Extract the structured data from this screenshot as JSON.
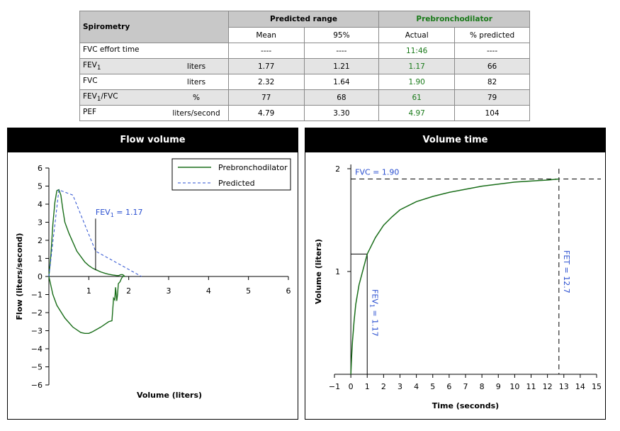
{
  "table": {
    "title": "Spirometry",
    "group_predicted": "Predicted range",
    "group_pre": "Prebronchodilator",
    "col_mean": "Mean",
    "col_95": "95%",
    "col_actual": "Actual",
    "col_pct": "% predicted",
    "rows": [
      {
        "name": "FVC effort time",
        "name_sub": "",
        "name_after": "",
        "unit": "",
        "mean": "----",
        "p95": "----",
        "actual": "11:46",
        "pct": "----"
      },
      {
        "name": "FEV",
        "name_sub": "1",
        "name_after": "",
        "unit": "liters",
        "mean": "1.77",
        "p95": "1.21",
        "actual": "1.17",
        "pct": "66"
      },
      {
        "name": "FVC",
        "name_sub": "",
        "name_after": "",
        "unit": "liters",
        "mean": "2.32",
        "p95": "1.64",
        "actual": "1.90",
        "pct": "82"
      },
      {
        "name": "FEV",
        "name_sub": "1",
        "name_after": "/FVC",
        "unit": "%",
        "mean": "77",
        "p95": "68",
        "actual": "61",
        "pct": "79"
      },
      {
        "name": "PEF",
        "name_sub": "",
        "name_after": "",
        "unit": "liters/second",
        "mean": "4.79",
        "p95": "3.30",
        "actual": "4.97",
        "pct": "104"
      }
    ]
  },
  "colors": {
    "pre": "#1a6e1a",
    "pred": "#2a4fd0",
    "label_blue": "#2a4fd0",
    "green_text": "#1a7a1a"
  },
  "chart_data": [
    {
      "type": "line",
      "title": "Flow volume",
      "xlabel": "Volume (liters)",
      "ylabel": "Flow (liters/second)",
      "xlim": [
        0,
        6
      ],
      "ylim": [
        -6,
        6
      ],
      "xticks": [
        "1",
        "2",
        "3",
        "4",
        "5",
        "6"
      ],
      "yticks": [
        "6",
        "5",
        "4",
        "3",
        "2",
        "1",
        "0",
        "−1",
        "−2",
        "−3",
        "−4",
        "−5",
        "−6"
      ],
      "legend": {
        "position": "top-right",
        "entries": [
          "Prebronchodilator",
          "Predicted"
        ]
      },
      "annotation": {
        "text_main": "FEV",
        "text_sub": "1",
        "text_after": " = 1.17",
        "x": 1.17
      },
      "series": [
        {
          "name": "Prebronchodilator",
          "style": "solid",
          "x": [
            0,
            0.05,
            0.1,
            0.15,
            0.2,
            0.25,
            0.3,
            0.35,
            0.4,
            0.5,
            0.6,
            0.7,
            0.8,
            0.9,
            1.0,
            1.1,
            1.2,
            1.3,
            1.4,
            1.5,
            1.6,
            1.7,
            1.75,
            1.8,
            1.85,
            1.88,
            1.9
          ],
          "y": [
            0,
            1.2,
            2.9,
            4.1,
            4.75,
            4.8,
            4.5,
            3.7,
            3.0,
            2.4,
            1.9,
            1.4,
            1.1,
            0.8,
            0.6,
            0.45,
            0.35,
            0.25,
            0.18,
            0.12,
            0.08,
            0.05,
            0.05,
            0.1,
            0.1,
            0.05,
            0
          ]
        },
        {
          "name": "Prebronchodilator (inspiratory)",
          "style": "solid",
          "x": [
            0,
            0.05,
            0.1,
            0.2,
            0.4,
            0.6,
            0.8,
            0.9,
            1.0,
            1.1,
            1.3,
            1.5,
            1.58,
            1.62,
            1.65,
            1.67,
            1.7,
            1.72,
            1.74,
            1.78,
            1.82,
            1.86,
            1.9
          ],
          "y": [
            0,
            -0.5,
            -1.0,
            -1.6,
            -2.3,
            -2.8,
            -3.1,
            -3.15,
            -3.15,
            -3.05,
            -2.8,
            -2.5,
            -2.45,
            -1.2,
            -1.3,
            -0.6,
            -1.35,
            -1.0,
            -0.4,
            -0.3,
            -0.1,
            0.02,
            0
          ]
        },
        {
          "name": "Predicted",
          "style": "dashed",
          "x": [
            0,
            0.25,
            0.6,
            1.17,
            2.32
          ],
          "y": [
            0,
            4.79,
            4.5,
            1.4,
            0
          ]
        }
      ]
    },
    {
      "type": "line",
      "title": "Volume time",
      "xlabel": "Time (seconds)",
      "ylabel": "Volume (liters)",
      "xlim": [
        -1,
        15
      ],
      "ylim": [
        0,
        2
      ],
      "xticks": [
        "−1",
        "0",
        "1",
        "2",
        "3",
        "4",
        "5",
        "6",
        "7",
        "8",
        "9",
        "10",
        "11",
        "12",
        "13",
        "14",
        "15"
      ],
      "yticks": [
        "2",
        "1"
      ],
      "annotations": {
        "fvc": "FVC = 1.90",
        "fev1_main": "FEV",
        "fev1_sub": "1",
        "fev1_after": " = 1.17",
        "fet": "FET = 12.7"
      },
      "fvc": 1.9,
      "fev1": 1.17,
      "fet": 12.7,
      "series": [
        {
          "name": "Prebronchodilator",
          "x": [
            0,
            0.05,
            0.1,
            0.2,
            0.3,
            0.5,
            0.7,
            1.0,
            1.5,
            2,
            2.5,
            3,
            4,
            5,
            6,
            7,
            8,
            9,
            10,
            11,
            12,
            12.7
          ],
          "y": [
            0,
            0.18,
            0.32,
            0.52,
            0.68,
            0.87,
            0.99,
            1.17,
            1.33,
            1.45,
            1.53,
            1.6,
            1.68,
            1.73,
            1.77,
            1.8,
            1.83,
            1.85,
            1.87,
            1.88,
            1.89,
            1.9
          ]
        }
      ]
    }
  ]
}
